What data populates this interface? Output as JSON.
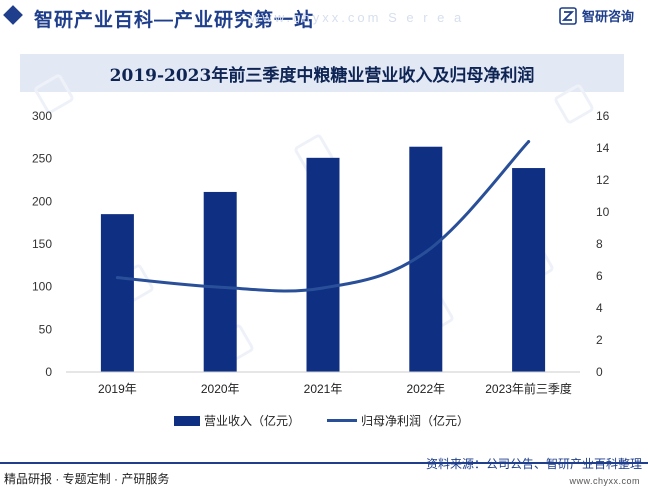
{
  "header": {
    "title": "智研产业百科—产业研究第一站",
    "ghost_text": "www.chyxx.com  S e r e a",
    "brand_name": "智研咨询"
  },
  "chart_data": {
    "type": "bar",
    "title": "2019-2023年前三季度中粮糖业营业收入及归母净利润",
    "categories": [
      "2019年",
      "2020年",
      "2021年",
      "2022年",
      "2023年前三季度"
    ],
    "series": [
      {
        "name": "营业收入（亿元）",
        "type": "bar",
        "axis": "left",
        "color": "#0e2f82",
        "values": [
          185,
          211,
          251,
          264,
          239
        ]
      },
      {
        "name": "归母净利润（亿元）",
        "type": "line",
        "axis": "right",
        "color": "#2a4f99",
        "values": [
          5.9,
          5.3,
          5.25,
          7.5,
          14.4
        ]
      }
    ],
    "y_left": {
      "min": 0,
      "max": 300,
      "step": 50,
      "ticks": [
        "0",
        "50",
        "100",
        "150",
        "200",
        "250",
        "300"
      ]
    },
    "y_right": {
      "min": 0,
      "max": 16,
      "step": 2,
      "ticks": [
        "0",
        "2",
        "4",
        "6",
        "8",
        "10",
        "12",
        "14",
        "16"
      ]
    },
    "grid": false,
    "legend_position": "bottom"
  },
  "footer": {
    "left_text": "精品研报 · 专题定制 · 产研服务",
    "source": "资料来源：公司公告、智研产业百科整理",
    "url": "www.chyxx.com"
  }
}
